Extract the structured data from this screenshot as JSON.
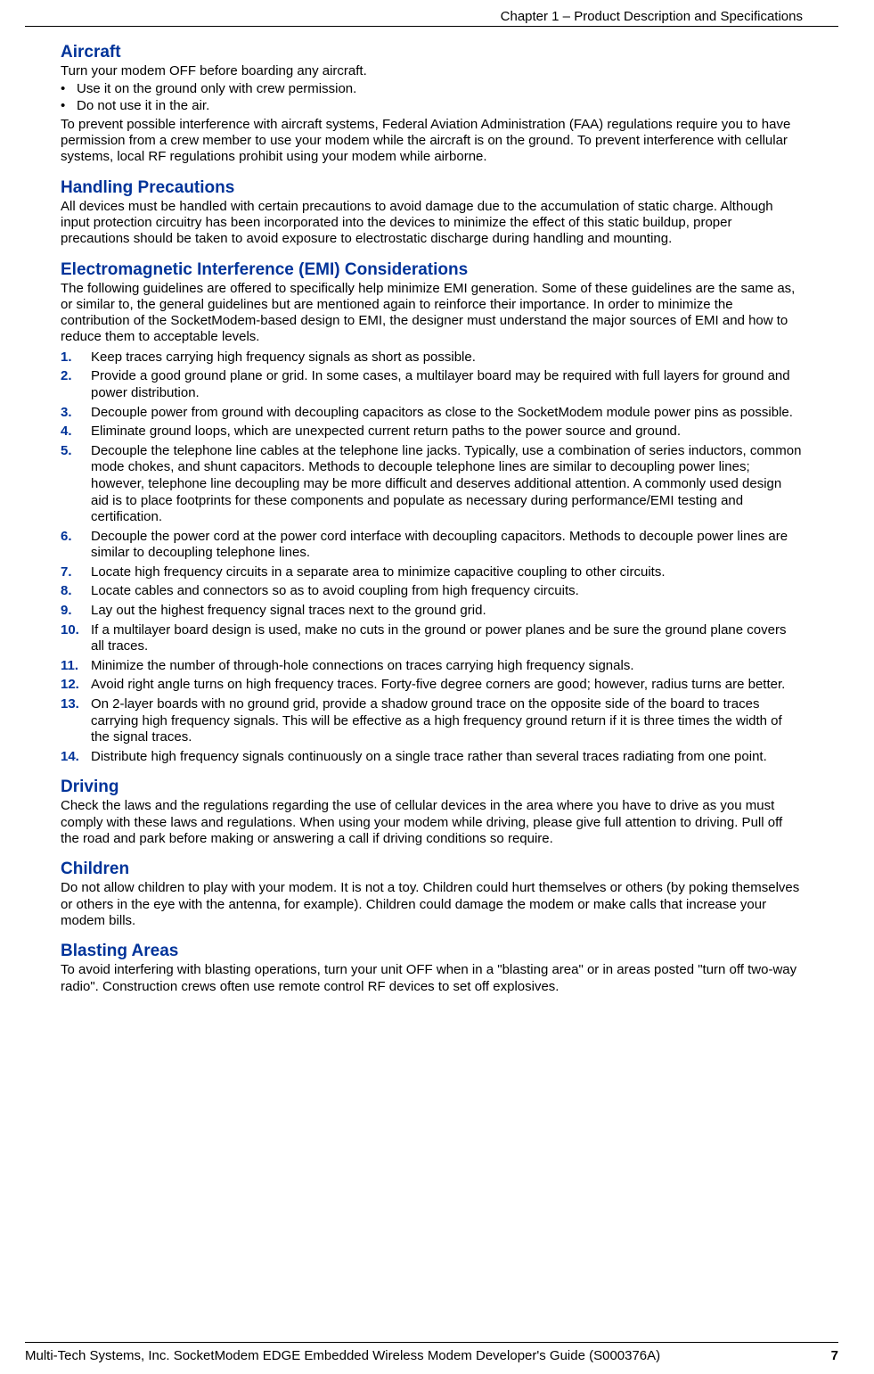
{
  "header": {
    "running": "Chapter 1 – Product Description and Specifications"
  },
  "sections": {
    "aircraft": {
      "title": "Aircraft",
      "intro": "Turn your modem OFF before boarding any aircraft.",
      "bullets": [
        "Use it on the ground only with crew permission.",
        "Do not use it in the air."
      ],
      "after": "To prevent possible interference with aircraft systems, Federal Aviation Administration (FAA) regulations require you to have permission from a crew member to use your modem while the aircraft is on the ground. To prevent interference with cellular systems, local RF regulations prohibit using your modem while airborne."
    },
    "handling": {
      "title": "Handling Precautions",
      "body": "All devices must be handled with certain precautions to avoid damage due to the accumulation of static charge. Although input protection circuitry has been incorporated into the devices to minimize the effect of this static buildup, proper precautions should be taken to avoid exposure to electrostatic discharge during handling and mounting."
    },
    "emi": {
      "title": "Electromagnetic Interference (EMI) Considerations",
      "intro": "The following guidelines are offered to specifically help minimize EMI generation. Some of these guidelines are the same as, or similar to, the general guidelines but are mentioned again to reinforce their importance. In order to minimize the contribution of the SocketModem-based design to EMI, the designer must understand the major sources of EMI and how to reduce them to acceptable levels.",
      "items": [
        "Keep traces carrying high frequency signals as short as possible.",
        "Provide a good ground plane or grid. In some cases, a multilayer board may be required with full layers for ground and power distribution.",
        "Decouple power from ground with decoupling capacitors as close to the SocketModem module power pins as possible.",
        "Eliminate ground loops, which are unexpected current return paths to the power source and ground.",
        "Decouple the telephone line cables at the telephone line jacks. Typically, use a combination of series inductors, common mode chokes, and shunt capacitors. Methods to decouple telephone lines are similar to decoupling power lines; however, telephone line decoupling may be more difficult and deserves additional attention. A commonly used design aid is to place footprints for these components and populate as necessary during performance/EMI testing and certification.",
        "Decouple the power cord at the power cord interface with decoupling capacitors. Methods to decouple power lines are similar to decoupling telephone lines.",
        "Locate high frequency circuits in a separate area to minimize capacitive coupling to other circuits.",
        "Locate cables and connectors so as to avoid coupling from high frequency circuits.",
        "Lay out the highest frequency signal traces next to the ground grid.",
        "If a multilayer board design is used, make no cuts in the ground or power planes and be sure the ground plane covers all traces.",
        "Minimize the number of through-hole connections on traces carrying high frequency signals.",
        "Avoid right angle turns on high frequency traces. Forty-five degree corners are good; however, radius turns are better.",
        "On 2-layer boards with no ground grid, provide a shadow ground trace on the opposite side of the board to traces carrying high frequency signals. This will be effective as a high frequency ground return if it is three times the width of the signal traces.",
        "Distribute high frequency signals continuously on a single trace rather than several traces radiating from one point."
      ]
    },
    "driving": {
      "title": "Driving",
      "body": "Check the laws and the regulations regarding the use of cellular devices in the area where you have to drive as you must comply with these laws and regulations. When using your modem while driving, please give full attention to driving. Pull off the road and park before making or answering a call if driving conditions so require."
    },
    "children": {
      "title": "Children",
      "body": "Do not allow children to play with your modem. It is not a toy. Children could hurt themselves or others (by poking themselves or others in the eye with the antenna, for example). Children could damage the modem or make calls that increase your modem bills."
    },
    "blasting": {
      "title": "Blasting Areas",
      "body": "To avoid interfering with blasting operations, turn your unit OFF when in a \"blasting area\" or in areas posted \"turn off two-way radio\". Construction crews often use remote control RF devices to set off explosives."
    }
  },
  "footer": {
    "text": "Multi-Tech Systems, Inc. SocketModem EDGE Embedded Wireless Modem Developer's Guide (S000376A)",
    "page": "7"
  },
  "colors": {
    "heading": "#003399",
    "text": "#000000",
    "rule": "#000000",
    "background": "#ffffff"
  },
  "typography": {
    "heading_size": 19,
    "body_size": 15,
    "heading_weight": "bold",
    "list_number_color": "#003399",
    "list_number_weight": "bold"
  }
}
